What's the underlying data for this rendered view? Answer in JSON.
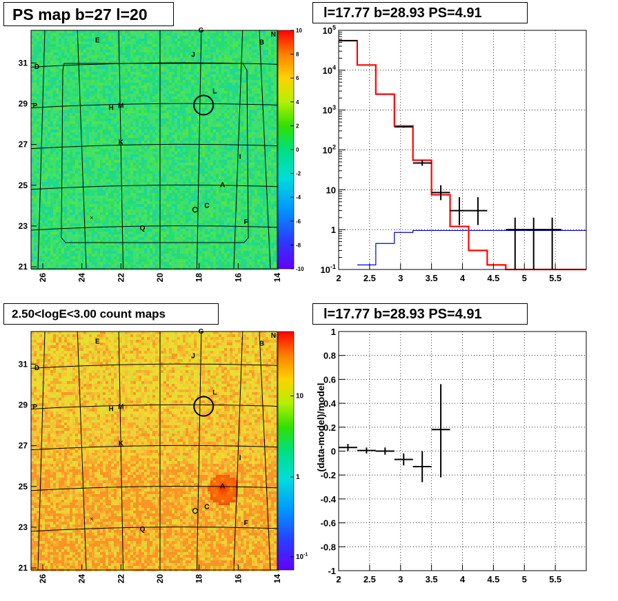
{
  "panels": {
    "ps_map_title": "PS map b=27 l=20",
    "spectrum_title": "l=17.77 b=28.93 PS=4.91",
    "count_map_title": "2.50<logE<3.00 count maps",
    "residual_title": "l=17.77 b=28.93 PS=4.91"
  },
  "colors": {
    "model_line": "#ff0000",
    "background_line": "#0000cc",
    "data_points": "#000000",
    "source_circle": "#000000"
  },
  "chart_data": [
    {
      "type": "heatmap",
      "title": "PS map b=27 l=20",
      "xlabel": "",
      "ylabel": "",
      "x_ticks": [
        "26",
        "24",
        "22",
        "20",
        "18",
        "16",
        "14"
      ],
      "y_ticks": [
        "21",
        "23",
        "25",
        "27",
        "29",
        "31"
      ],
      "xlim": [
        26.6,
        14.0
      ],
      "ylim": [
        20.9,
        32.6
      ],
      "colorbar": {
        "min": -10,
        "max": 10,
        "ticks": [
          "10",
          "8",
          "6",
          "4",
          "2",
          "0",
          "-2",
          "-4",
          "-6",
          "-8",
          "-10"
        ]
      },
      "dominant_value": 0,
      "source_labels": [
        {
          "name": "G",
          "l": 17.9,
          "b": 32.5
        },
        {
          "name": "N",
          "l": 14.2,
          "b": 32.3
        },
        {
          "name": "E",
          "l": 23.2,
          "b": 32.0
        },
        {
          "name": "B",
          "l": 14.8,
          "b": 31.9
        },
        {
          "name": "J",
          "l": 18.3,
          "b": 31.3
        },
        {
          "name": "D",
          "l": 26.3,
          "b": 30.7
        },
        {
          "name": "L",
          "l": 17.2,
          "b": 29.5
        },
        {
          "name": "M",
          "l": 22.0,
          "b": 28.8
        },
        {
          "name": "H",
          "l": 22.5,
          "b": 28.7
        },
        {
          "name": "P",
          "l": 26.4,
          "b": 28.8
        },
        {
          "name": "K",
          "l": 22.0,
          "b": 27.0
        },
        {
          "name": "I",
          "l": 15.9,
          "b": 26.3
        },
        {
          "name": "A",
          "l": 16.8,
          "b": 24.9
        },
        {
          "name": "C",
          "l": 17.6,
          "b": 23.9
        },
        {
          "name": "F",
          "l": 15.6,
          "b": 23.1
        },
        {
          "name": "Q",
          "l": 20.9,
          "b": 22.8
        }
      ],
      "markers": [
        {
          "kind": "small-circle",
          "l": 18.2,
          "b": 23.8
        },
        {
          "kind": "x-cross",
          "l": 23.5,
          "b": 23.4
        },
        {
          "kind": "source-circle",
          "l": 17.77,
          "b": 28.93
        }
      ]
    },
    {
      "type": "line",
      "title": "l=17.77 b=28.93 PS=4.91",
      "xlabel": "",
      "ylabel": "",
      "xlim": [
        2,
        6
      ],
      "ylim": [
        0.1,
        100000
      ],
      "y_log": true,
      "grid": true,
      "x_ticks": [
        "2",
        "2.5",
        "3",
        "3.5",
        "4",
        "4.5",
        "5",
        "5.5"
      ],
      "y_ticks": [
        "10^-1",
        "1",
        "10",
        "10^2",
        "10^3",
        "10^4",
        "10^5"
      ],
      "series": [
        {
          "style": "step",
          "edges": [
            2.0,
            2.3,
            2.6,
            2.9,
            3.2,
            3.5,
            3.8,
            4.1,
            4.4,
            4.7,
            6.0
          ],
          "values": [
            55000,
            13500,
            2500,
            400,
            55,
            7.5,
            1.2,
            0.3,
            0.13,
            0.1
          ]
        },
        {
          "style": "step",
          "edges": [
            2.3,
            2.6,
            2.9,
            3.2,
            3.5,
            3.8,
            4.1,
            4.4,
            6.0
          ],
          "values": [
            0.13,
            0.45,
            0.85,
            0.95,
            0.95,
            0.95,
            0.95,
            0.95
          ]
        },
        {
          "style": "errorbar",
          "points": [
            {
              "x": 2.15,
              "y": 55000,
              "ylo": 54000,
              "yhi": 56000,
              "xerr": 0.15
            },
            {
              "x": 3.05,
              "y": 380,
              "ylo": 360,
              "yhi": 400,
              "xerr": 0.15
            },
            {
              "x": 3.35,
              "y": 47,
              "ylo": 40,
              "yhi": 55,
              "xerr": 0.15
            },
            {
              "x": 3.65,
              "y": 8.5,
              "ylo": 5.5,
              "yhi": 13,
              "xerr": 0.15
            },
            {
              "x": 3.95,
              "y": 3.0,
              "ylo": 1.3,
              "yhi": 6.5,
              "xerr": 0.15
            },
            {
              "x": 4.25,
              "y": 3.0,
              "ylo": 1.3,
              "yhi": 6.5,
              "xerr": 0.15
            },
            {
              "x": 4.85,
              "y": 1.0,
              "ylo": 0.1,
              "yhi": 2.0,
              "xerr": 0.15
            },
            {
              "x": 5.15,
              "y": 1.0,
              "ylo": 0.1,
              "yhi": 2.0,
              "xerr": 0.15
            },
            {
              "x": 5.45,
              "y": 1.0,
              "ylo": 0.1,
              "yhi": 2.0,
              "xerr": 0.15
            }
          ]
        }
      ]
    },
    {
      "type": "heatmap",
      "title": "2.50<logE<3.00 count maps",
      "xlabel": "",
      "ylabel": "",
      "x_ticks": [
        "26",
        "24",
        "22",
        "20",
        "18",
        "16",
        "14"
      ],
      "y_ticks": [
        "21",
        "23",
        "25",
        "27",
        "29",
        "31"
      ],
      "xlim": [
        26.6,
        14.0
      ],
      "ylim": [
        20.9,
        32.6
      ],
      "colorbar": {
        "log": true,
        "ticks": [
          "10",
          "1",
          "10^-1"
        ]
      },
      "bright_spot": {
        "l": 16.8,
        "b": 24.9
      }
    },
    {
      "type": "scatter",
      "title": "l=17.77 b=28.93 PS=4.91",
      "xlabel": "",
      "ylabel": "(data-model)/model",
      "xlim": [
        2,
        6
      ],
      "ylim": [
        -1,
        1
      ],
      "grid": true,
      "x_ticks": [
        "2",
        "2.5",
        "3",
        "3.5",
        "4",
        "4.5",
        "5",
        "5.5"
      ],
      "y_ticks": [
        "1",
        "0.8",
        "0.6",
        "0.4",
        "0.2",
        "0",
        "-0.2",
        "-0.4",
        "-0.6",
        "-0.8",
        "-1"
      ],
      "points": [
        {
          "x": 2.15,
          "y": 0.03,
          "ylo": 0.0,
          "yhi": 0.06,
          "xerr": 0.15
        },
        {
          "x": 2.45,
          "y": 0.005,
          "ylo": -0.02,
          "yhi": 0.03,
          "xerr": 0.15
        },
        {
          "x": 2.75,
          "y": 0.0,
          "ylo": -0.03,
          "yhi": 0.03,
          "xerr": 0.15
        },
        {
          "x": 3.05,
          "y": -0.07,
          "ylo": -0.12,
          "yhi": -0.02,
          "xerr": 0.15
        },
        {
          "x": 3.35,
          "y": -0.13,
          "ylo": -0.26,
          "yhi": 0.0,
          "xerr": 0.15
        },
        {
          "x": 3.65,
          "y": 0.18,
          "ylo": -0.22,
          "yhi": 0.56,
          "xerr": 0.15
        }
      ]
    }
  ]
}
